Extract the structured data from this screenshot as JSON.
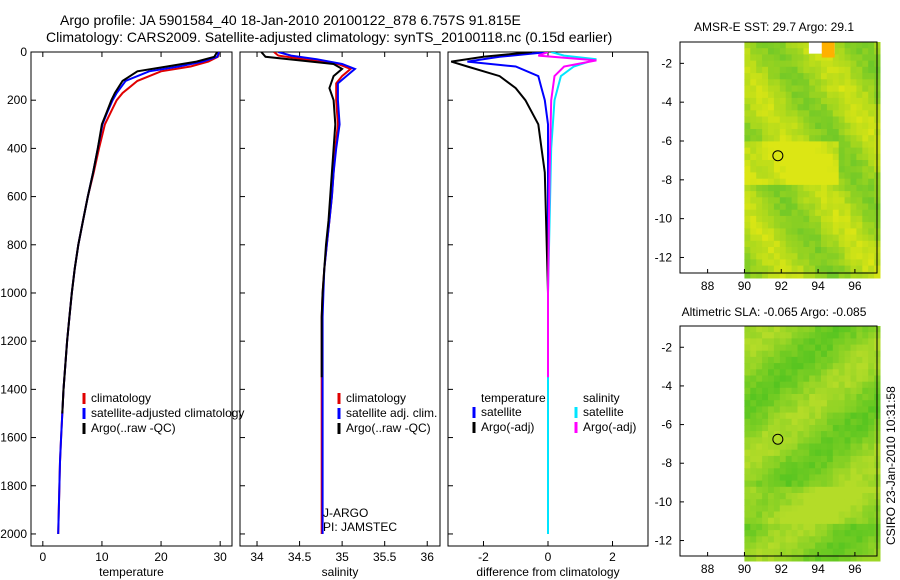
{
  "header": {
    "line1": "Argo profile: JA 5901584_40 18-Jan-2010 20100122_878 6.757S 91.815E",
    "line2": "Climatology: CARS2009. Satellite-adjusted climatology: synTS_20100118.nc (0.15d earlier)"
  },
  "footer": {
    "credit": "CSIRO 23-Jan-2010 10:31:58"
  },
  "colors": {
    "climatology": "#e00000",
    "satellite": "#0000ff",
    "argo": "#000000",
    "sat_sal_diff": "#00e5ff",
    "argo_sal_diff": "#ff00ff"
  },
  "chart_data": [
    {
      "type": "line",
      "name": "temperature-profile",
      "xlabel": "temperature",
      "ylabel": "",
      "xlim": [
        -2,
        32
      ],
      "ylim": [
        2050,
        0
      ],
      "y_reversed": true,
      "xticks": [
        "0",
        "10",
        "20",
        "30"
      ],
      "xtick_values": [
        0,
        10,
        20,
        30
      ],
      "yticks": [
        "0",
        "200",
        "400",
        "600",
        "800",
        "1000",
        "1200",
        "1400",
        "1600",
        "1800",
        "2000"
      ],
      "ytick_values": [
        0,
        200,
        400,
        600,
        800,
        1000,
        1200,
        1400,
        1600,
        1800,
        2000
      ],
      "series": [
        {
          "name": "climatology",
          "color": "#e00000",
          "points": [
            [
              29.8,
              0
            ],
            [
              29.6,
              20
            ],
            [
              28,
              40
            ],
            [
              25,
              60
            ],
            [
              20,
              80
            ],
            [
              16,
              120
            ],
            [
              13.5,
              170
            ],
            [
              12.5,
              200
            ],
            [
              11.5,
              250
            ],
            [
              10.5,
              300
            ],
            [
              9.5,
              400
            ],
            [
              8.6,
              500
            ],
            [
              7.6,
              600
            ],
            [
              6.8,
              700
            ],
            [
              6,
              800
            ],
            [
              5.4,
              900
            ],
            [
              4.9,
              1000
            ],
            [
              4.5,
              1100
            ],
            [
              4.1,
              1200
            ],
            [
              3.8,
              1300
            ],
            [
              3.5,
              1400
            ],
            [
              3.3,
              1500
            ],
            [
              3.1,
              1600
            ],
            [
              2.9,
              1700
            ],
            [
              2.8,
              1800
            ],
            [
              2.7,
              1900
            ],
            [
              2.6,
              2000
            ]
          ]
        },
        {
          "name": "satellite-adjusted climatology",
          "color": "#0000ff",
          "points": [
            [
              29.8,
              0
            ],
            [
              29.5,
              20
            ],
            [
              27,
              40
            ],
            [
              23,
              60
            ],
            [
              18,
              80
            ],
            [
              14,
              120
            ],
            [
              12.5,
              170
            ],
            [
              11.8,
              200
            ],
            [
              10.9,
              250
            ],
            [
              10.1,
              300
            ],
            [
              9.3,
              400
            ],
            [
              8.5,
              500
            ],
            [
              7.6,
              600
            ],
            [
              6.8,
              700
            ],
            [
              6,
              800
            ],
            [
              5.4,
              900
            ],
            [
              4.9,
              1000
            ],
            [
              4.5,
              1100
            ],
            [
              4.1,
              1200
            ],
            [
              3.8,
              1300
            ],
            [
              3.5,
              1400
            ],
            [
              3.3,
              1500
            ],
            [
              3.1,
              1600
            ],
            [
              2.9,
              1700
            ],
            [
              2.8,
              1800
            ],
            [
              2.7,
              1900
            ],
            [
              2.6,
              2000
            ]
          ]
        },
        {
          "name": "Argo(..raw -QC)",
          "color": "#000000",
          "points": [
            [
              29.5,
              0
            ],
            [
              29,
              20
            ],
            [
              26,
              40
            ],
            [
              21,
              60
            ],
            [
              16,
              80
            ],
            [
              13.5,
              120
            ],
            [
              12.2,
              170
            ],
            [
              11.6,
              200
            ],
            [
              10.8,
              250
            ],
            [
              10,
              300
            ],
            [
              9.3,
              400
            ],
            [
              8.5,
              500
            ],
            [
              7.6,
              600
            ],
            [
              6.8,
              700
            ],
            [
              6,
              800
            ],
            [
              5.4,
              900
            ],
            [
              4.9,
              1000
            ],
            [
              4.5,
              1100
            ],
            [
              4.1,
              1200
            ],
            [
              3.8,
              1300
            ],
            [
              3.5,
              1400
            ],
            [
              3.3,
              1500
            ]
          ]
        }
      ],
      "legend": [
        "climatology",
        "satellite-adjusted climatology",
        "Argo(..raw -QC)"
      ]
    },
    {
      "type": "line",
      "name": "salinity-profile",
      "xlabel": "salinity",
      "xlim": [
        33.8,
        36.15
      ],
      "ylim": [
        2050,
        0
      ],
      "y_reversed": true,
      "xticks": [
        "34",
        "34.5",
        "35",
        "35.5",
        "36"
      ],
      "xtick_values": [
        34,
        34.5,
        35,
        35.5,
        36
      ],
      "series": [
        {
          "name": "climatology",
          "color": "#e00000",
          "points": [
            [
              34.2,
              0
            ],
            [
              34.25,
              15
            ],
            [
              34.55,
              30
            ],
            [
              34.95,
              50
            ],
            [
              35.1,
              70
            ],
            [
              35,
              100
            ],
            [
              34.93,
              130
            ],
            [
              34.93,
              200
            ],
            [
              34.95,
              300
            ],
            [
              34.92,
              400
            ],
            [
              34.9,
              500
            ],
            [
              34.88,
              600
            ],
            [
              34.85,
              700
            ],
            [
              34.82,
              800
            ],
            [
              34.79,
              900
            ],
            [
              34.77,
              1000
            ],
            [
              34.76,
              1100
            ],
            [
              34.76,
              1200
            ],
            [
              34.76,
              1400
            ],
            [
              34.76,
              1600
            ],
            [
              34.76,
              1800
            ],
            [
              34.76,
              2000
            ]
          ]
        },
        {
          "name": "satellite adj. clim.",
          "color": "#0000ff",
          "points": [
            [
              34.25,
              0
            ],
            [
              34.4,
              15
            ],
            [
              34.7,
              30
            ],
            [
              35,
              50
            ],
            [
              35.15,
              70
            ],
            [
              35.05,
              100
            ],
            [
              34.95,
              130
            ],
            [
              34.95,
              200
            ],
            [
              34.97,
              300
            ],
            [
              34.93,
              400
            ],
            [
              34.9,
              500
            ],
            [
              34.88,
              600
            ],
            [
              34.85,
              700
            ],
            [
              34.82,
              800
            ],
            [
              34.79,
              900
            ],
            [
              34.78,
              1000
            ],
            [
              34.77,
              1100
            ],
            [
              34.77,
              1200
            ],
            [
              34.77,
              1400
            ],
            [
              34.77,
              1600
            ],
            [
              34.77,
              1800
            ],
            [
              34.77,
              2000
            ]
          ]
        },
        {
          "name": "Argo(..raw -QC)",
          "color": "#000000",
          "points": [
            [
              34.05,
              0
            ],
            [
              34.1,
              20
            ],
            [
              34.5,
              35
            ],
            [
              34.9,
              50
            ],
            [
              35.0,
              70
            ],
            [
              34.9,
              100
            ],
            [
              34.85,
              150
            ],
            [
              34.9,
              200
            ],
            [
              34.92,
              300
            ],
            [
              34.9,
              400
            ],
            [
              34.88,
              500
            ],
            [
              34.86,
              600
            ],
            [
              34.84,
              700
            ],
            [
              34.81,
              800
            ],
            [
              34.79,
              900
            ],
            [
              34.77,
              1000
            ],
            [
              34.76,
              1100
            ],
            [
              34.76,
              1200
            ],
            [
              34.76,
              1350
            ]
          ]
        }
      ],
      "legend": [
        "climatology",
        "satellite adj. clim.",
        "Argo(..raw -QC)"
      ],
      "annotations": [
        "J-ARGO",
        "PI: JAMSTEC"
      ]
    },
    {
      "type": "line",
      "name": "difference-from-climatology",
      "xlabel": "difference from climatology",
      "xlim": [
        -3.1,
        3.1
      ],
      "ylim": [
        2050,
        0
      ],
      "y_reversed": true,
      "xticks": [
        "-2",
        "0",
        "2"
      ],
      "xtick_values": [
        -2,
        0,
        2
      ],
      "series": [
        {
          "name": "temperature satellite",
          "color": "#0000ff",
          "points": [
            [
              0,
              0
            ],
            [
              -1.5,
              20
            ],
            [
              -2.5,
              40
            ],
            [
              -1,
              60
            ],
            [
              -0.3,
              100
            ],
            [
              -0.2,
              150
            ],
            [
              -0.1,
              200
            ],
            [
              0,
              300
            ],
            [
              0,
              500
            ],
            [
              0,
              1000
            ],
            [
              0,
              1500
            ],
            [
              0,
              2000
            ]
          ]
        },
        {
          "name": "temperature Argo(-adj)",
          "color": "#000000",
          "points": [
            [
              -0.5,
              0
            ],
            [
              -2,
              20
            ],
            [
              -3,
              40
            ],
            [
              -2.5,
              60
            ],
            [
              -1.5,
              100
            ],
            [
              -1.0,
              150
            ],
            [
              -0.7,
              200
            ],
            [
              -0.3,
              300
            ],
            [
              -0.2,
              400
            ],
            [
              -0.1,
              500
            ],
            [
              0,
              1000
            ],
            [
              0,
              1500
            ]
          ]
        },
        {
          "name": "salinity satellite",
          "color": "#00e5ff",
          "points": [
            [
              0.1,
              0
            ],
            [
              0.5,
              15
            ],
            [
              1.5,
              30
            ],
            [
              0.8,
              60
            ],
            [
              0.4,
              100
            ],
            [
              0.2,
              200
            ],
            [
              0.1,
              400
            ],
            [
              0.05,
              700
            ],
            [
              0,
              1000
            ],
            [
              0,
              2000
            ]
          ]
        },
        {
          "name": "salinity Argo(-adj)",
          "color": "#ff00ff",
          "points": [
            [
              0,
              0
            ],
            [
              -0.3,
              15
            ],
            [
              1.5,
              35
            ],
            [
              0.5,
              60
            ],
            [
              0.2,
              100
            ],
            [
              0.1,
              200
            ],
            [
              0.05,
              500
            ],
            [
              0,
              1000
            ],
            [
              0,
              1350
            ]
          ]
        }
      ],
      "legend_headers": [
        "temperature",
        "salinity"
      ],
      "legend_temperature": [
        "satellite",
        "Argo(-adj)"
      ],
      "legend_salinity": [
        "satellite",
        "Argo(-adj)"
      ]
    },
    {
      "type": "heatmap",
      "name": "amsr-e-sst-map",
      "title": "AMSR-E SST: 29.7 Argo: 29.1",
      "xlim": [
        86.5,
        97.2
      ],
      "ylim": [
        -12.8,
        -0.9
      ],
      "xticks": [
        "88",
        "90",
        "92",
        "94",
        "96"
      ],
      "xtick_values": [
        88,
        90,
        92,
        94,
        96
      ],
      "yticks": [
        "-2",
        "-4",
        "-6",
        "-8",
        "-10",
        "-12"
      ],
      "ytick_values": [
        -2,
        -4,
        -6,
        -8,
        -10,
        -12
      ],
      "data_extent_lon": [
        90,
        97.2
      ],
      "argo_position": [
        91.815,
        -6.757
      ],
      "palette": "yellow-green"
    },
    {
      "type": "heatmap",
      "name": "altimetric-sla-map",
      "title": "Altimetric SLA: -0.065 Argo: -0.085",
      "xlim": [
        86.5,
        97.2
      ],
      "ylim": [
        -12.8,
        -0.9
      ],
      "xticks": [
        "88",
        "90",
        "92",
        "94",
        "96"
      ],
      "xtick_values": [
        88,
        90,
        92,
        94,
        96
      ],
      "yticks": [
        "-2",
        "-4",
        "-6",
        "-8",
        "-10",
        "-12"
      ],
      "ytick_values": [
        -2,
        -4,
        -6,
        -8,
        -10,
        -12
      ],
      "data_extent_lon": [
        90,
        97.2
      ],
      "argo_position": [
        91.815,
        -6.757
      ],
      "palette": "green"
    }
  ]
}
